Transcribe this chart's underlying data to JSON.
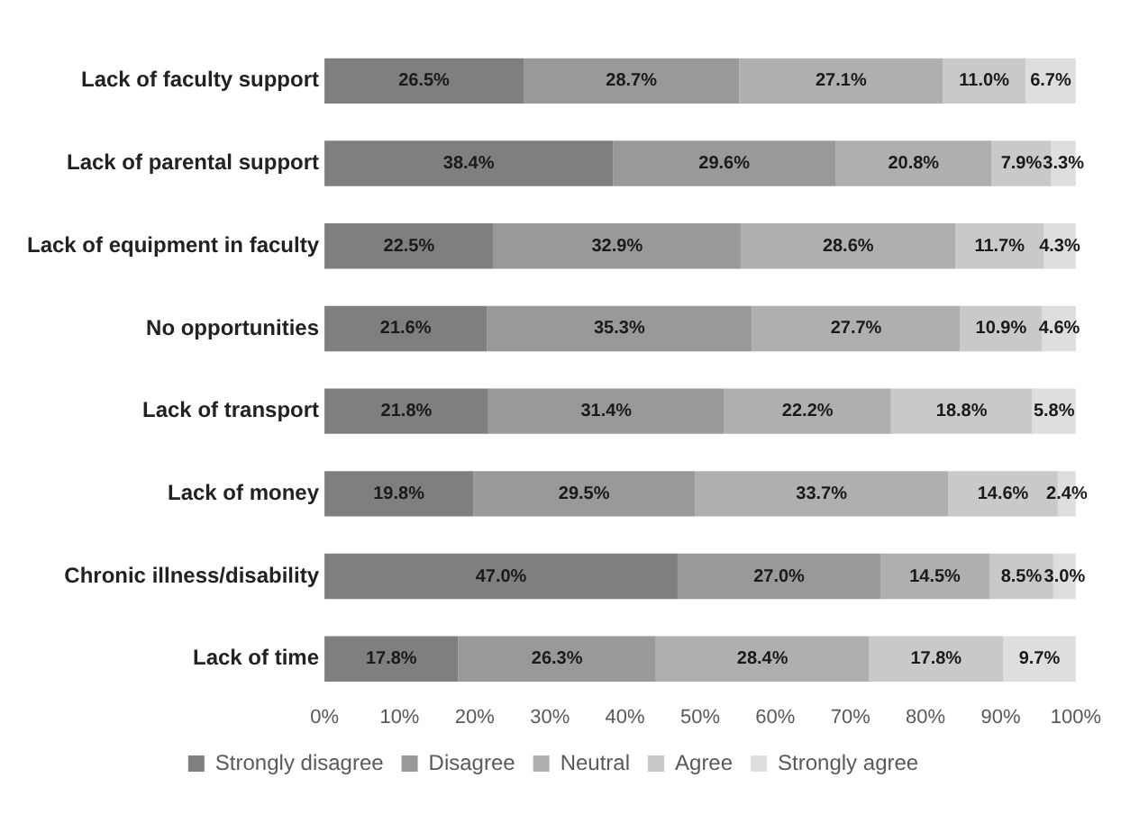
{
  "chart_data": {
    "type": "bar",
    "orientation": "horizontal",
    "stacked": true,
    "legend": "bottom",
    "grid": false,
    "categories": [
      "Lack of faculty support",
      "Lack of parental support",
      "Lack of equipment in faculty",
      "No opportunities",
      "Lack of transport",
      "Lack of money",
      "Chronic illness/disability",
      "Lack of time"
    ],
    "xlim": [
      0,
      100
    ],
    "xticks": [
      {
        "value": 0,
        "label": "0%"
      },
      {
        "value": 10,
        "label": "10%"
      },
      {
        "value": 20,
        "label": "20%"
      },
      {
        "value": 30,
        "label": "30%"
      },
      {
        "value": 40,
        "label": "40%"
      },
      {
        "value": 50,
        "label": "50%"
      },
      {
        "value": 60,
        "label": "60%"
      },
      {
        "value": 70,
        "label": "70%"
      },
      {
        "value": 80,
        "label": "80%"
      },
      {
        "value": 90,
        "label": "90%"
      },
      {
        "value": 100,
        "label": "100%"
      }
    ],
    "series": [
      {
        "name": "Strongly disagree",
        "color": "#7f7f7f",
        "values": [
          26.5,
          38.4,
          22.5,
          21.6,
          21.8,
          19.8,
          47.0,
          17.8
        ],
        "value_labels": [
          "26.5%",
          "38.4%",
          "22.5%",
          "21.6%",
          "21.8%",
          "19.8%",
          "47.0%",
          "17.8%"
        ]
      },
      {
        "name": "Disagree",
        "color": "#999999",
        "values": [
          28.7,
          29.6,
          32.9,
          35.3,
          31.4,
          29.5,
          27.0,
          26.3
        ],
        "value_labels": [
          "28.7%",
          "29.6%",
          "32.9%",
          "35.3%",
          "31.4%",
          "29.5%",
          "27.0%",
          "26.3%"
        ]
      },
      {
        "name": "Neutral",
        "color": "#afafaf",
        "values": [
          27.1,
          20.8,
          28.6,
          27.7,
          22.2,
          33.7,
          14.5,
          28.4
        ],
        "value_labels": [
          "27.1%",
          "20.8%",
          "28.6%",
          "27.7%",
          "22.2%",
          "33.7%",
          "14.5%",
          "28.4%"
        ]
      },
      {
        "name": "Agree",
        "color": "#c9c9c9",
        "values": [
          11.0,
          7.9,
          11.7,
          10.9,
          18.8,
          14.6,
          8.5,
          17.8
        ],
        "value_labels": [
          "11.0%",
          "7.9%",
          "11.7%",
          "10.9%",
          "18.8%",
          "14.6%",
          "8.5%",
          "17.8%"
        ]
      },
      {
        "name": "Strongly agree",
        "color": "#dedede",
        "values": [
          6.7,
          3.3,
          4.3,
          4.6,
          5.8,
          2.4,
          3.0,
          9.7
        ],
        "value_labels": [
          "6.7%",
          "3.3%",
          "4.3%",
          "4.6%",
          "5.8%",
          "2.4%",
          "3.0%",
          "9.7%"
        ]
      }
    ]
  }
}
